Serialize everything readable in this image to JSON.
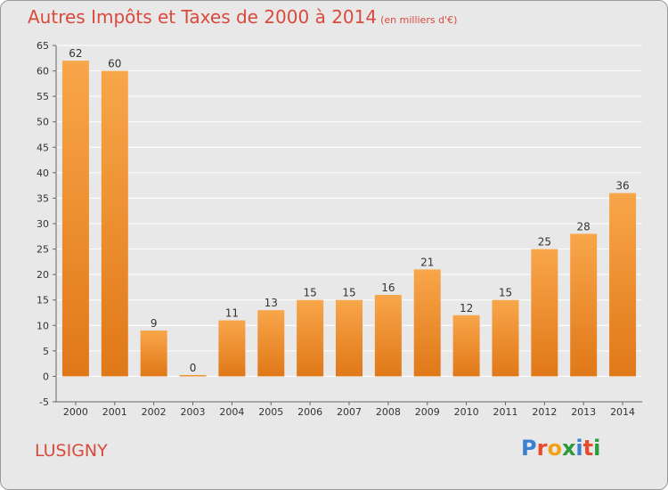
{
  "header": {
    "title": "Autres Impôts et Taxes de 2000 à 2014",
    "unit": "(en milliers d'€)"
  },
  "footer": {
    "city": "LUSIGNY",
    "logo": {
      "letters": [
        "P",
        "r",
        "o",
        "x",
        "i",
        "t",
        "i"
      ],
      "text": "Proxiti"
    }
  },
  "colors": {
    "background": "#e8e8e8",
    "title": "#d94a3c",
    "bar_top": "#f8a64a",
    "bar_bottom": "#e07818",
    "grid": "#ffffff",
    "logo": [
      "#3a7fd0",
      "#e84a2a",
      "#f2a21a",
      "#2a9a3a",
      "#3a7fd0",
      "#e84a2a",
      "#2a9a3a"
    ]
  },
  "chart_data": {
    "type": "bar",
    "title": "Autres Impôts et Taxes de 2000 à 2014",
    "subtitle": "(en milliers d'€)",
    "xlabel": "",
    "ylabel": "",
    "categories": [
      "2000",
      "2001",
      "2002",
      "2003",
      "2004",
      "2005",
      "2006",
      "2007",
      "2008",
      "2009",
      "2010",
      "2011",
      "2012",
      "2013",
      "2014"
    ],
    "values": [
      62,
      60,
      9,
      0,
      11,
      13,
      15,
      15,
      16,
      21,
      12,
      15,
      25,
      28,
      36
    ],
    "ylim": [
      -5,
      65
    ],
    "yticks": [
      -5,
      0,
      5,
      10,
      15,
      20,
      25,
      30,
      35,
      40,
      45,
      50,
      55,
      60,
      65
    ],
    "grid": true,
    "legend": "none"
  }
}
